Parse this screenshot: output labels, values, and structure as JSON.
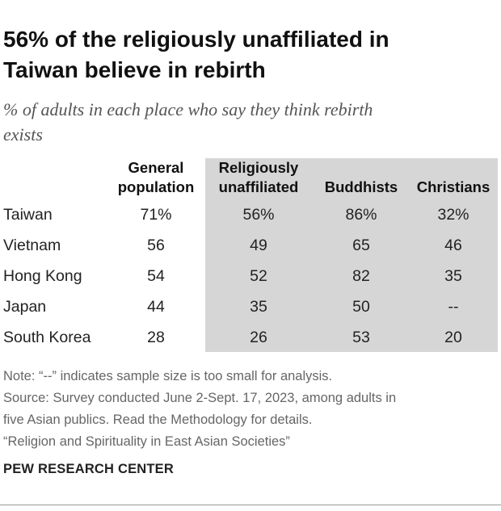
{
  "title": {
    "line1": "56% of the religiously unaffiliated in",
    "line2": "Taiwan believe in rebirth"
  },
  "subtitle": {
    "line1": "% of adults in each place who say they think rebirth",
    "line2": "exists"
  },
  "columns": [
    {
      "line1": "General",
      "line2": "population"
    },
    {
      "line1": "Religiously",
      "line2": "unaffiliated"
    },
    {
      "line1": "",
      "line2": "Buddhists"
    },
    {
      "line1": "",
      "line2": "Christians"
    }
  ],
  "shading": {
    "color": "#d6d6d6",
    "shaded_columns": [
      "Religiously unaffiliated",
      "Buddhists",
      "Christians"
    ]
  },
  "chart_data": {
    "type": "table",
    "title": "56% of the religiously unaffiliated in Taiwan believe in rebirth",
    "subtitle": "% of adults in each place who say they think rebirth exists",
    "columns": [
      "General population",
      "Religiously unaffiliated",
      "Buddhists",
      "Christians"
    ],
    "rows": [
      {
        "label": "Taiwan",
        "cells": [
          "71%",
          "56%",
          "86%",
          "32%"
        ]
      },
      {
        "label": "Vietnam",
        "cells": [
          "56",
          "49",
          "65",
          "46"
        ]
      },
      {
        "label": "Hong Kong",
        "cells": [
          "54",
          "52",
          "82",
          "35"
        ]
      },
      {
        "label": "Japan",
        "cells": [
          "44",
          "35",
          "50",
          "--"
        ]
      },
      {
        "label": "South Korea",
        "cells": [
          "28",
          "26",
          "53",
          "20"
        ]
      }
    ]
  },
  "notes": {
    "note": "Note: “--” indicates sample size is too small for analysis.",
    "source_line1": "Source: Survey conducted June 2-Sept. 17, 2023, among adults in",
    "source_line2": "five Asian publics. Read the Methodology for details.",
    "report": "“Religion and Spirituality in East Asian Societies”"
  },
  "logo": "PEW RESEARCH CENTER"
}
